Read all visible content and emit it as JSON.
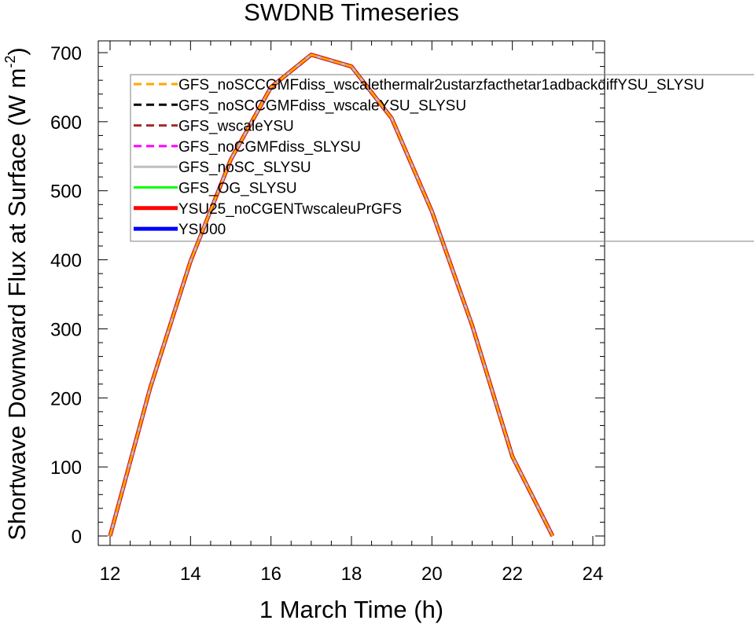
{
  "chart_data": {
    "type": "line",
    "title": "SWDNB Timeseries",
    "xlabel": "1 March Time (h)",
    "ylabel_main": "Shortwave Downward Flux at Surface (W m",
    "ylabel_sup": "-2",
    "ylabel_close": ")",
    "xlim": [
      12,
      24
    ],
    "ylim": [
      0,
      700
    ],
    "x_ticks": [
      12,
      14,
      16,
      18,
      20,
      22,
      24
    ],
    "y_ticks": [
      0,
      100,
      200,
      300,
      400,
      500,
      600,
      700
    ],
    "grid": false,
    "legend_position": "top-right",
    "x": [
      12,
      13,
      14,
      15,
      16,
      17,
      18,
      19,
      20,
      21,
      22,
      23
    ],
    "series": [
      {
        "name": "GFS_noSCCGMFdiss_wscalethermalr2ustarzfacthetar1adbackdiffYSU_SLYSU",
        "color": "#ffa500",
        "dash": "dashed",
        "values": [
          0,
          215,
          398,
          545,
          650,
          697,
          680,
          605,
          470,
          305,
          115,
          0
        ]
      },
      {
        "name": "GFS_noSCCGMFdiss_wscaleYSU_SLYSU",
        "color": "#000000",
        "dash": "dashed",
        "values": [
          0,
          215,
          398,
          545,
          650,
          697,
          680,
          605,
          470,
          305,
          115,
          0
        ]
      },
      {
        "name": "GFS_wscaleYSU",
        "color": "#a52a2a",
        "dash": "dashed",
        "values": [
          0,
          215,
          398,
          545,
          650,
          697,
          680,
          605,
          470,
          305,
          115,
          0
        ]
      },
      {
        "name": "GFS_noCGMFdiss_SLYSU",
        "color": "#ff00ff",
        "dash": "dashed",
        "values": [
          0,
          215,
          398,
          545,
          650,
          697,
          680,
          605,
          470,
          305,
          115,
          0
        ]
      },
      {
        "name": "GFS_noSC_SLYSU",
        "color": "#bebebe",
        "dash": "solid",
        "values": [
          0,
          215,
          398,
          545,
          650,
          697,
          680,
          605,
          470,
          305,
          115,
          0
        ]
      },
      {
        "name": "GFS_OG_SLYSU",
        "color": "#00ff00",
        "dash": "solid",
        "values": [
          0,
          215,
          398,
          545,
          650,
          697,
          680,
          605,
          470,
          305,
          115,
          0
        ]
      },
      {
        "name": "YSU25_noCGENTwscaleuPrGFS",
        "color": "#ff0000",
        "dash": "solid-thick",
        "values": [
          0,
          215,
          398,
          545,
          650,
          697,
          680,
          605,
          470,
          305,
          115,
          0
        ]
      },
      {
        "name": "YSU00",
        "color": "#0000ff",
        "dash": "solid-thick",
        "values": [
          0,
          215,
          398,
          545,
          650,
          697,
          680,
          605,
          470,
          305,
          115,
          0
        ]
      }
    ]
  }
}
